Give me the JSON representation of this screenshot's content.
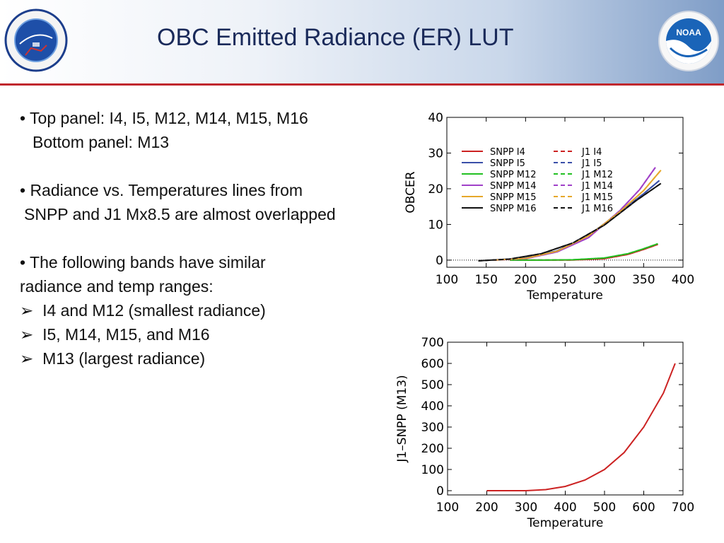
{
  "slide": {
    "title": "OBC Emitted Radiance (ER) LUT",
    "logo_left_text": "NOAA NESDIS STAR",
    "logo_right_text": "NOAA"
  },
  "bullets": {
    "b1_line1": "• Top panel: I4, I5, M12, M14, M15, M16",
    "b1_line2": "Bottom panel: M13",
    "b2_line1": "• Radiance vs. Temperatures lines from",
    "b2_line2": "SNPP and J1 Mx8.5 are almost overlapped",
    "b3_line1": "• The following bands have similar",
    "b3_line2": "radiance and temp ranges:",
    "sub1": "I4 and M12 (smallest radiance)",
    "sub2": "I5, M14, M15, and M16",
    "sub3": "M13 (largest radiance)",
    "sub_marker": "➢"
  },
  "chart_data": [
    {
      "type": "line",
      "xlabel": "Temperature",
      "ylabel": "OBCER",
      "xlim": [
        100,
        400
      ],
      "ylim": [
        -2,
        40
      ],
      "xticks": [
        100,
        150,
        200,
        250,
        300,
        350,
        400
      ],
      "yticks": [
        0,
        10,
        20,
        30,
        40
      ],
      "reference_line_y": 0,
      "legend_placement": "top-left",
      "series": [
        {
          "name": "SNPP I4",
          "color": "#cc2222",
          "dash": "solid",
          "x": [
            180,
            220,
            260,
            300,
            330,
            350,
            368
          ],
          "y": [
            0,
            0,
            0.05,
            0.4,
            1.6,
            3.0,
            4.4
          ]
        },
        {
          "name": "SNPP I5",
          "color": "#3a4fa8",
          "dash": "solid",
          "x": [
            160,
            200,
            240,
            280,
            320,
            350,
            370
          ],
          "y": [
            0,
            0.6,
            2.6,
            6.9,
            13.5,
            18.6,
            22.3
          ]
        },
        {
          "name": "SNPP M12",
          "color": "#22c022",
          "dash": "solid",
          "x": [
            180,
            220,
            260,
            300,
            330,
            350,
            368
          ],
          "y": [
            0,
            0,
            0.1,
            0.6,
            1.8,
            3.2,
            4.6
          ]
        },
        {
          "name": "SNPP M14",
          "color": "#a040c8",
          "dash": "solid",
          "x": [
            160,
            200,
            240,
            280,
            320,
            345,
            365
          ],
          "y": [
            0,
            0.4,
            2.3,
            6.3,
            13.9,
            19.8,
            26
          ]
        },
        {
          "name": "SNPP M15",
          "color": "#e6a82a",
          "dash": "solid",
          "x": [
            160,
            200,
            240,
            280,
            320,
            350,
            372
          ],
          "y": [
            0,
            0.5,
            2.5,
            6.8,
            13.6,
            19.5,
            25.2
          ]
        },
        {
          "name": "SNPP M16",
          "color": "#111111",
          "dash": "solid",
          "x": [
            140,
            180,
            220,
            260,
            300,
            340,
            372
          ],
          "y": [
            -0.2,
            0.3,
            1.8,
            4.8,
            9.8,
            16.6,
            21.5
          ]
        },
        {
          "name": "J1 I4",
          "color": "#cc2222",
          "dash": "dashed",
          "x": [
            180,
            220,
            260,
            300,
            330,
            350,
            368
          ],
          "y": [
            0,
            0,
            0.05,
            0.4,
            1.6,
            3.0,
            4.4
          ]
        },
        {
          "name": "J1 I5",
          "color": "#3a4fa8",
          "dash": "dashed",
          "x": [
            160,
            200,
            240,
            280,
            320,
            350,
            370
          ],
          "y": [
            0,
            0.6,
            2.6,
            6.9,
            13.5,
            18.6,
            22.3
          ]
        },
        {
          "name": "J1 M12",
          "color": "#22c022",
          "dash": "dashed",
          "x": [
            180,
            220,
            260,
            300,
            330,
            350,
            368
          ],
          "y": [
            0,
            0,
            0.1,
            0.6,
            1.8,
            3.2,
            4.6
          ]
        },
        {
          "name": "J1 M14",
          "color": "#a040c8",
          "dash": "dashed",
          "x": [
            160,
            200,
            240,
            280,
            320,
            345,
            365
          ],
          "y": [
            0,
            0.4,
            2.3,
            6.3,
            13.9,
            19.8,
            26
          ]
        },
        {
          "name": "J1 M15",
          "color": "#e6a82a",
          "dash": "dashed",
          "x": [
            160,
            200,
            240,
            280,
            320,
            350,
            372
          ],
          "y": [
            0,
            0.5,
            2.5,
            6.8,
            13.6,
            19.5,
            25.2
          ]
        },
        {
          "name": "J1 M16",
          "color": "#111111",
          "dash": "dashed",
          "x": [
            140,
            180,
            220,
            260,
            300,
            340,
            372
          ],
          "y": [
            -0.2,
            0.3,
            1.8,
            4.8,
            9.8,
            16.6,
            21.5
          ]
        }
      ]
    },
    {
      "type": "line",
      "xlabel": "Temperature",
      "ylabel": "J1–SNPP (M13)",
      "xlim": [
        100,
        700
      ],
      "ylim": [
        -20,
        700
      ],
      "xticks": [
        100,
        200,
        300,
        400,
        500,
        600,
        700
      ],
      "yticks": [
        0,
        100,
        200,
        300,
        400,
        500,
        600,
        700
      ],
      "series": [
        {
          "color": "#cc2222",
          "dash": "solid",
          "x": [
            200,
            300,
            350,
            400,
            450,
            500,
            550,
            600,
            650,
            680
          ],
          "y": [
            0,
            0,
            5,
            20,
            50,
            100,
            180,
            300,
            460,
            600
          ]
        }
      ]
    }
  ]
}
